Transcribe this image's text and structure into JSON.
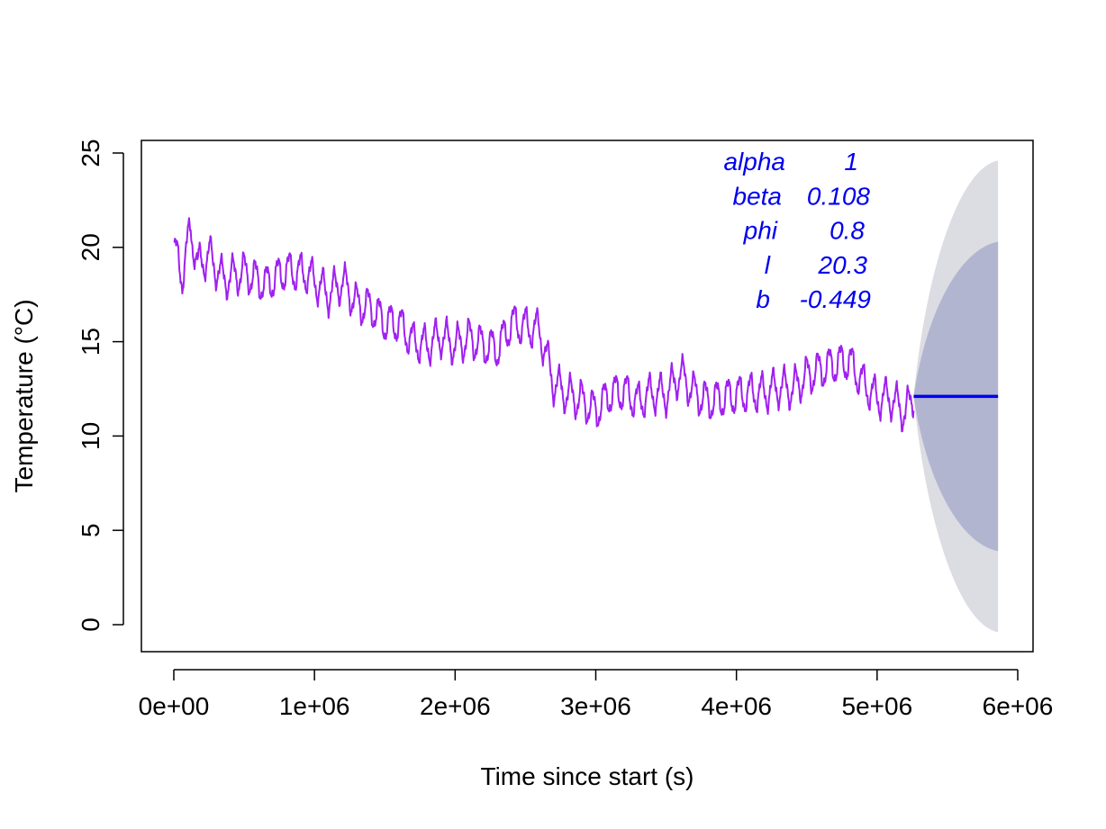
{
  "chart_data": {
    "type": "line",
    "title": "",
    "xlabel": "Time since start (s)",
    "ylabel": "Temperature (°C)",
    "xlim": [
      0,
      6000000
    ],
    "ylim": [
      0,
      25
    ],
    "x_ticks": [
      {
        "value": 0,
        "label": "0e+00"
      },
      {
        "value": 1000000,
        "label": "1e+06"
      },
      {
        "value": 2000000,
        "label": "2e+06"
      },
      {
        "value": 3000000,
        "label": "3e+06"
      },
      {
        "value": 4000000,
        "label": "4e+06"
      },
      {
        "value": 5000000,
        "label": "5e+06"
      },
      {
        "value": 6000000,
        "label": "6e+06"
      }
    ],
    "y_ticks": [
      {
        "value": 0,
        "label": "0"
      },
      {
        "value": 5,
        "label": "5"
      },
      {
        "value": 10,
        "label": "10"
      },
      {
        "value": 15,
        "label": "15"
      },
      {
        "value": 20,
        "label": "20"
      },
      {
        "value": 25,
        "label": "25"
      }
    ],
    "grid": false,
    "observed_anchors": [
      [
        0,
        20.0
      ],
      [
        60000,
        18.5
      ],
      [
        120000,
        21.0
      ],
      [
        170000,
        19.0
      ],
      [
        250000,
        19.6
      ],
      [
        350000,
        18.3
      ],
      [
        500000,
        18.7
      ],
      [
        650000,
        18.0
      ],
      [
        800000,
        18.8
      ],
      [
        950000,
        18.6
      ],
      [
        1100000,
        17.5
      ],
      [
        1200000,
        18.2
      ],
      [
        1300000,
        17.0
      ],
      [
        1400000,
        16.8
      ],
      [
        1500000,
        16.0
      ],
      [
        1600000,
        16.0
      ],
      [
        1700000,
        15.0
      ],
      [
        1800000,
        14.8
      ],
      [
        1900000,
        15.3
      ],
      [
        2000000,
        14.8
      ],
      [
        2100000,
        15.2
      ],
      [
        2200000,
        14.8
      ],
      [
        2300000,
        14.6
      ],
      [
        2400000,
        16.0
      ],
      [
        2500000,
        15.8
      ],
      [
        2600000,
        15.6
      ],
      [
        2700000,
        12.8
      ],
      [
        2800000,
        12.2
      ],
      [
        2900000,
        11.9
      ],
      [
        3000000,
        11.3
      ],
      [
        3100000,
        12.2
      ],
      [
        3200000,
        12.4
      ],
      [
        3300000,
        11.8
      ],
      [
        3400000,
        12.3
      ],
      [
        3500000,
        12.2
      ],
      [
        3600000,
        13.3
      ],
      [
        3700000,
        12.3
      ],
      [
        3800000,
        11.8
      ],
      [
        3900000,
        12.0
      ],
      [
        4000000,
        12.2
      ],
      [
        4100000,
        12.3
      ],
      [
        4200000,
        12.3
      ],
      [
        4300000,
        12.6
      ],
      [
        4400000,
        12.5
      ],
      [
        4500000,
        13.2
      ],
      [
        4600000,
        13.5
      ],
      [
        4700000,
        13.8
      ],
      [
        4800000,
        14.0
      ],
      [
        4900000,
        12.8
      ],
      [
        5000000,
        12.0
      ],
      [
        5100000,
        12.0
      ],
      [
        5200000,
        11.2
      ],
      [
        5260000,
        12.2
      ]
    ],
    "observed_ripple_amplitude": 0.9,
    "observed_ripple_period": 80000,
    "forecast": {
      "x_start": 5260000,
      "x_end": 5860000,
      "point": 12.1,
      "band_inner_end": [
        3.9,
        20.3
      ],
      "band_outer_end": [
        -0.4,
        24.6
      ]
    },
    "parameters": [
      {
        "name": "alpha",
        "value": "1"
      },
      {
        "name": "beta",
        "value": "0.108"
      },
      {
        "name": "phi",
        "value": "0.8"
      },
      {
        "name": "l",
        "value": "20.3"
      },
      {
        "name": "b",
        "value": "-0.449"
      }
    ],
    "colors": {
      "observed": "#a020f0",
      "forecast": "#0000ee",
      "band_inner": "#b1b5d0",
      "band_outer": "#dcdce3",
      "parameters": "#0000ee"
    }
  }
}
